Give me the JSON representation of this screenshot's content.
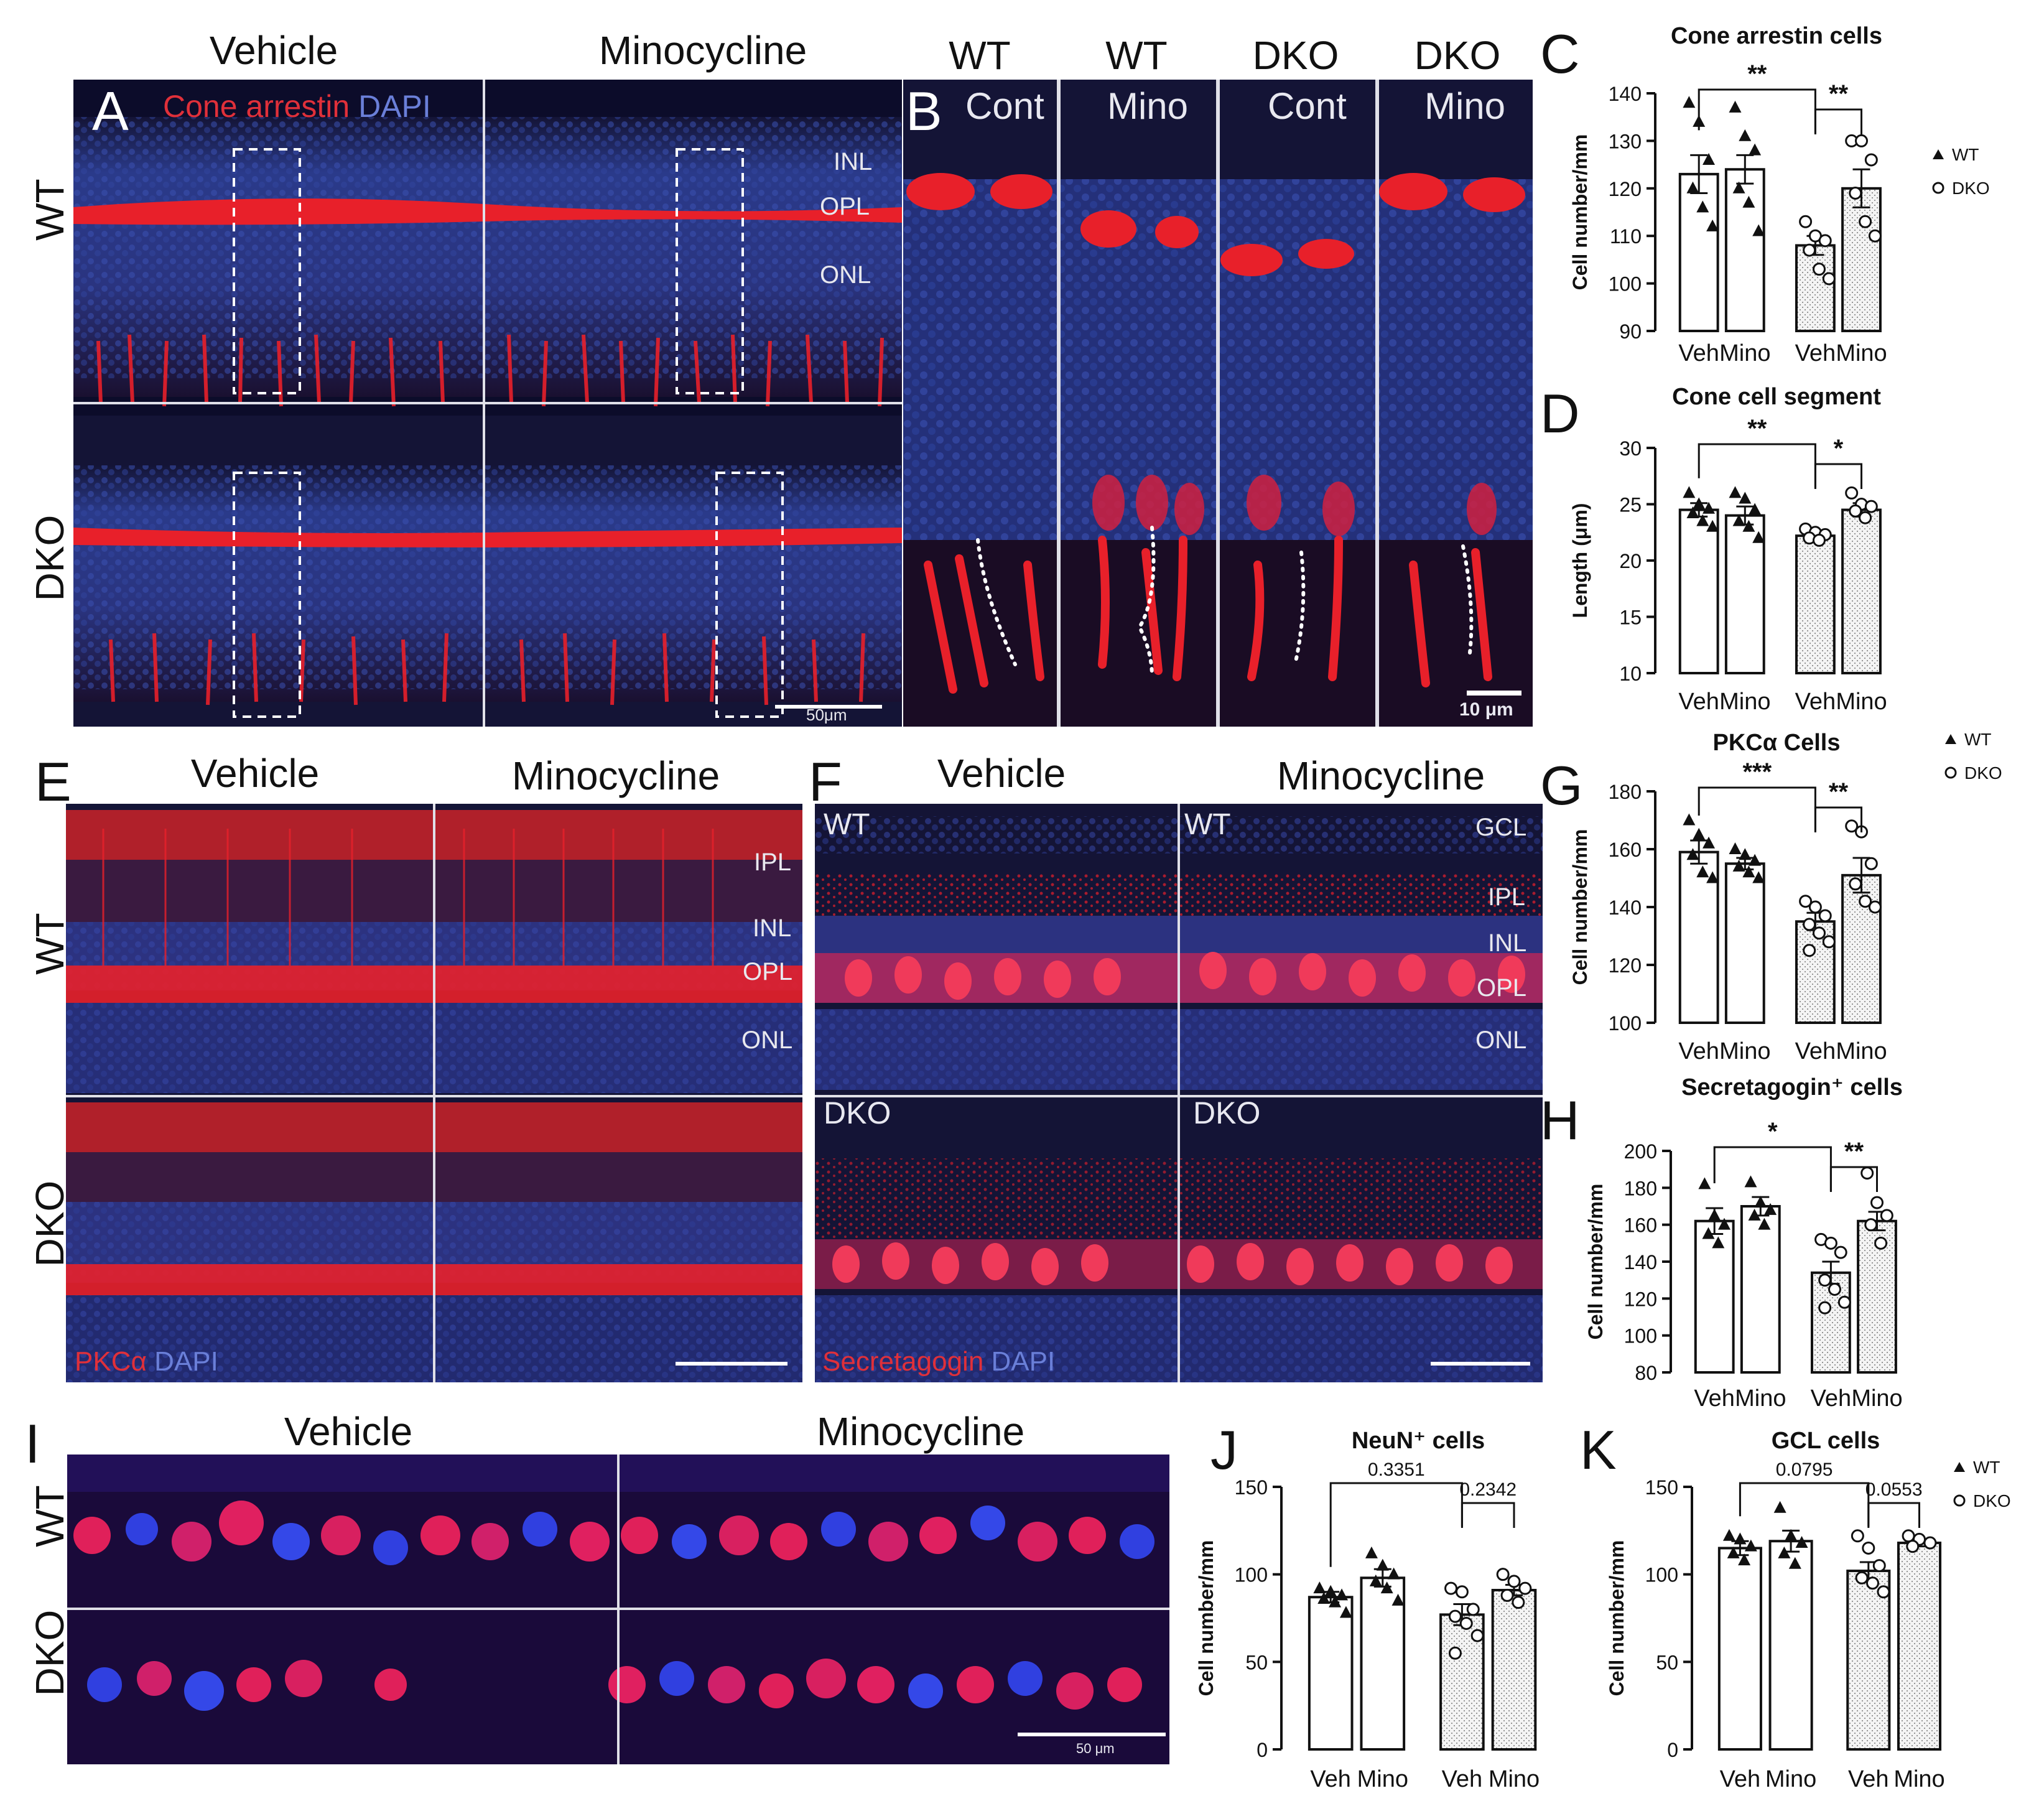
{
  "panelA": {
    "letter": "A",
    "col_headers": [
      "Vehicle",
      "Minocycline"
    ],
    "row_labels": [
      "WT",
      "DKO"
    ],
    "stain_red": "Cone arrestin",
    "stain_blue": "DAPI",
    "layers": [
      "INL",
      "OPL",
      "ONL"
    ],
    "scale": "50μm"
  },
  "panelB": {
    "letter": "B",
    "col_headers": [
      "WT",
      "WT",
      "DKO",
      "DKO"
    ],
    "col_sublabels": [
      "Cont",
      "Mino",
      "Cont",
      "Mino"
    ],
    "scale": "10 μm"
  },
  "panelE": {
    "letter": "E",
    "col_headers": [
      "Vehicle",
      "Minocycline"
    ],
    "row_labels": [
      "WT",
      "DKO"
    ],
    "stain_red": "PKCα",
    "stain_blue": "DAPI",
    "layers": [
      "IPL",
      "INL",
      "OPL",
      "ONL"
    ]
  },
  "panelF": {
    "letter": "F",
    "col_headers": [
      "Vehicle",
      "Minocycline"
    ],
    "tags": [
      "WT",
      "WT",
      "DKO",
      "DKO"
    ],
    "stain_red": "Secretagogin",
    "stain_blue": "DAPI",
    "layers": [
      "GCL",
      "IPL",
      "INL",
      "OPL",
      "ONL"
    ]
  },
  "panelI": {
    "letter": "I",
    "col_headers": [
      "Vehicle",
      "Minocycline"
    ],
    "row_labels": [
      "WT",
      "DKO"
    ],
    "scale": "50 μm"
  },
  "legend": {
    "wt": "WT",
    "dko": "DKO"
  },
  "colors": {
    "red_stain": "#e8202a",
    "blue_stain": "#3a4cc8",
    "bg": "#0c0c2a"
  },
  "chart_data": [
    {
      "id": "C",
      "letter": "C",
      "type": "bar",
      "title": "Cone arrestin cells",
      "ylabel": "Cell number/mm",
      "categories": [
        "Veh",
        "Mino",
        "Veh",
        "Mino"
      ],
      "groups": [
        "WT",
        "WT",
        "DKO",
        "DKO"
      ],
      "values": [
        123,
        124,
        108,
        120
      ],
      "sem": [
        4,
        3,
        2,
        4
      ],
      "ylim": [
        90,
        140
      ],
      "yticks": [
        90,
        100,
        110,
        120,
        130,
        140
      ],
      "points": [
        [
          138,
          134,
          126,
          120,
          116,
          112
        ],
        [
          137,
          131,
          128,
          120,
          117,
          111
        ],
        [
          113,
          110,
          109,
          107,
          103,
          101
        ],
        [
          130,
          130,
          126,
          119,
          113,
          110
        ]
      ],
      "sig": [
        {
          "label": "**",
          "from": 0,
          "to": 2
        },
        {
          "label": "**",
          "from": 2,
          "to": 3
        }
      ],
      "legend": true
    },
    {
      "id": "D",
      "letter": "D",
      "type": "bar",
      "title": "Cone cell segment",
      "ylabel": "Length (μm)",
      "categories": [
        "Veh",
        "Mino",
        "Veh",
        "Mino"
      ],
      "groups": [
        "WT",
        "WT",
        "DKO",
        "DKO"
      ],
      "values": [
        24.5,
        24.0,
        22.2,
        24.5
      ],
      "sem": [
        0.6,
        0.8,
        0.3,
        0.6
      ],
      "ylim": [
        10,
        30
      ],
      "yticks": [
        10,
        15,
        20,
        25,
        30
      ],
      "points": [
        [
          26,
          25,
          24.6,
          24.2,
          23.5,
          23
        ],
        [
          26,
          25.5,
          24.5,
          23.5,
          23,
          22
        ],
        [
          22.8,
          22.5,
          22.3,
          22,
          21.8
        ],
        [
          26,
          25,
          24.8,
          24.4,
          23.8
        ]
      ],
      "sig": [
        {
          "label": "**",
          "from": 0,
          "to": 2
        },
        {
          "label": "*",
          "from": 2,
          "to": 3
        }
      ],
      "legend": false
    },
    {
      "id": "G",
      "letter": "G",
      "type": "bar",
      "title": "PKCα Cells",
      "ylabel": "Cell number/mm",
      "categories": [
        "Veh",
        "Mino",
        "Veh",
        "Mino"
      ],
      "groups": [
        "WT",
        "WT",
        "DKO",
        "DKO"
      ],
      "values": [
        159,
        155,
        135,
        151
      ],
      "sem": [
        4,
        2,
        3,
        6
      ],
      "ylim": [
        100,
        180
      ],
      "yticks": [
        100,
        120,
        140,
        160,
        180
      ],
      "points": [
        [
          170,
          165,
          162,
          158,
          152,
          150
        ],
        [
          160,
          158,
          156,
          154,
          152,
          150
        ],
        [
          142,
          140,
          137,
          134,
          131,
          128,
          125
        ],
        [
          168,
          166,
          155,
          148,
          142,
          140
        ]
      ],
      "sig": [
        {
          "label": "***",
          "from": 0,
          "to": 2
        },
        {
          "label": "**",
          "from": 2,
          "to": 3
        }
      ],
      "legend": true
    },
    {
      "id": "H",
      "letter": "H",
      "type": "bar",
      "title": "Secretagogin⁺ cells",
      "ylabel": "Cell number/mm",
      "categories": [
        "Veh",
        "Mino",
        "Veh",
        "Mino"
      ],
      "groups": [
        "WT",
        "WT",
        "DKO",
        "DKO"
      ],
      "values": [
        162,
        170,
        134,
        162
      ],
      "sem": [
        7,
        5,
        6,
        5
      ],
      "ylim": [
        80,
        200
      ],
      "yticks": [
        80,
        100,
        120,
        140,
        160,
        180,
        200
      ],
      "points": [
        [
          182,
          165,
          160,
          155,
          150
        ],
        [
          183,
          172,
          168,
          165,
          160
        ],
        [
          152,
          150,
          145,
          130,
          125,
          118,
          115
        ],
        [
          188,
          172,
          165,
          160,
          150
        ]
      ],
      "sig": [
        {
          "label": "*",
          "from": 0,
          "to": 2
        },
        {
          "label": "**",
          "from": 2,
          "to": 3
        }
      ],
      "legend": false
    },
    {
      "id": "J",
      "letter": "J",
      "type": "bar",
      "title": "NeuN⁺ cells",
      "ylabel": "Cell number/mm",
      "categories": [
        "Veh",
        "Mino",
        "Veh",
        "Mino"
      ],
      "groups": [
        "WT",
        "WT",
        "DKO",
        "DKO"
      ],
      "values": [
        87,
        98,
        77,
        91
      ],
      "sem": [
        3,
        5,
        6,
        3
      ],
      "ylim": [
        0,
        150
      ],
      "yticks": [
        0,
        50,
        100,
        150
      ],
      "points": [
        [
          92,
          90,
          88,
          86,
          84,
          78
        ],
        [
          112,
          105,
          100,
          96,
          92,
          85
        ],
        [
          92,
          90,
          80,
          76,
          72,
          65,
          55
        ],
        [
          100,
          96,
          92,
          88,
          84
        ]
      ],
      "sig": [
        {
          "label": "0.3351",
          "from": 0,
          "to": 2
        },
        {
          "label": "0.2342",
          "from": 2,
          "to": 3
        }
      ],
      "legend": false
    },
    {
      "id": "K",
      "letter": "K",
      "type": "bar",
      "title": "GCL cells",
      "ylabel": "Cell number/mm",
      "categories": [
        "Veh",
        "Mino",
        "Veh",
        "Mino"
      ],
      "groups": [
        "WT",
        "WT",
        "DKO",
        "DKO"
      ],
      "values": [
        115,
        119,
        102,
        118
      ],
      "sem": [
        4,
        6,
        5,
        2
      ],
      "ylim": [
        0,
        150
      ],
      "yticks": [
        0,
        50,
        100,
        150
      ],
      "points": [
        [
          122,
          120,
          116,
          112,
          108
        ],
        [
          138,
          122,
          118,
          112,
          106
        ],
        [
          122,
          115,
          105,
          98,
          95,
          90
        ],
        [
          122,
          120,
          118,
          116
        ]
      ],
      "sig": [
        {
          "label": "0.0795",
          "from": 0,
          "to": 2
        },
        {
          "label": "0.0553",
          "from": 2,
          "to": 3
        }
      ],
      "legend": true
    }
  ]
}
